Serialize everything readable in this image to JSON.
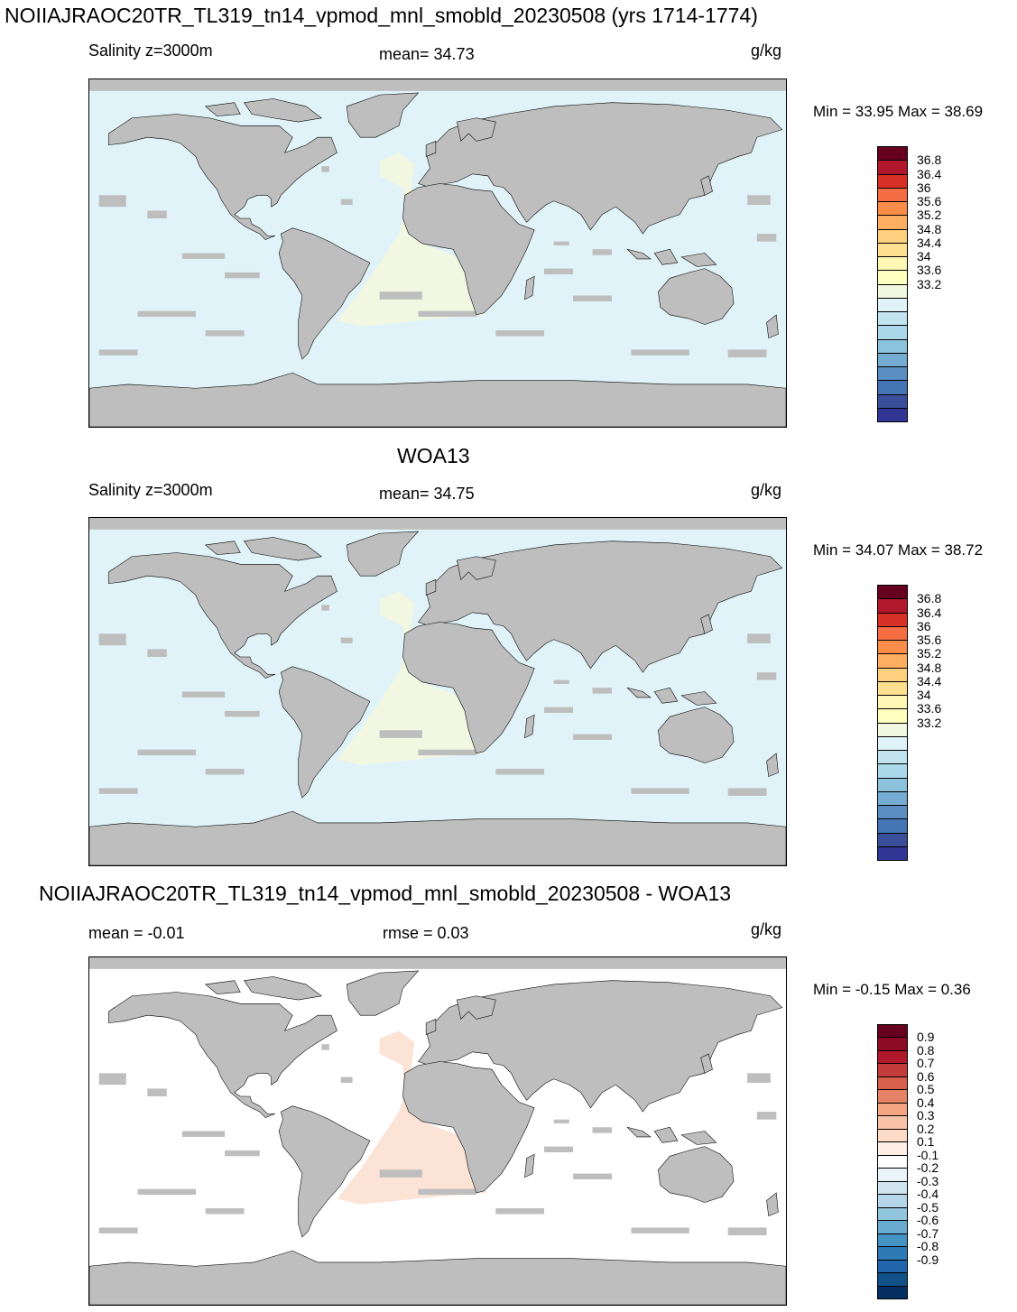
{
  "panels": [
    {
      "id": "model",
      "title": "NOIIAJRAOC20TR_TL319_tn14_vpmod_mnl_smobld_20230508 (yrs 1714-1774)",
      "left_label": "Salinity z=3000m",
      "center_label": "mean=  34.73",
      "unit": "g/kg",
      "minmax": "Min =  33.95 Max =  38.69",
      "ocean_color": "#e0f3f8",
      "highlight_color": "#f2f7e1"
    },
    {
      "id": "woa13",
      "title": "WOA13",
      "left_label": "Salinity z=3000m",
      "center_label": "mean=  34.75",
      "unit": "g/kg",
      "minmax": "Min =  34.07 Max =  38.72",
      "ocean_color": "#e0f3f8",
      "highlight_color": "#f2f7e1"
    },
    {
      "id": "difference",
      "title": "NOIIAJRAOC20TR_TL319_tn14_vpmod_mnl_smobld_20230508 - WOA13",
      "left_label": "mean =  -0.01",
      "center_label": "rmse =   0.03",
      "unit": "g/kg",
      "minmax": "Min =  -0.15 Max =   0.36",
      "ocean_color": "#ffffff",
      "highlight_color": "#fbe3d6"
    }
  ],
  "colorbars": {
    "salinity": {
      "labels": [
        "36.8",
        "36.4",
        "36",
        "35.6",
        "35.2",
        "34.8",
        "34.4",
        "34",
        "33.6",
        "33.2"
      ],
      "colors": [
        "#67001f",
        "#b2182b",
        "#d73027",
        "#f46d43",
        "#fb8d4b",
        "#fdae61",
        "#fdd17f",
        "#fee090",
        "#fef6b5",
        "#ffffbf",
        "#f2f7e1",
        "#e0f3f8",
        "#c1e4ef",
        "#abd9e9",
        "#8dc2dd",
        "#74add1",
        "#5b8fc4",
        "#4575b4",
        "#3a4f9a",
        "#313695"
      ]
    },
    "difference": {
      "labels": [
        "0.9",
        "0.8",
        "0.7",
        "0.6",
        "0.5",
        "0.4",
        "0.3",
        "0.2",
        "0.1",
        "-0.1",
        "-0.2",
        "-0.3",
        "-0.4",
        "-0.5",
        "-0.6",
        "-0.7",
        "-0.8",
        "-0.9"
      ],
      "colors": [
        "#67001f",
        "#8e0b26",
        "#b2182b",
        "#c43c3c",
        "#d6604d",
        "#e58368",
        "#f4a582",
        "#f8c3a8",
        "#fddbc7",
        "#fdeee6",
        "#ffffff",
        "#eaf3f8",
        "#d1e5f0",
        "#b5d6e8",
        "#92c5de",
        "#6aacd0",
        "#4393c3",
        "#2f79b5",
        "#2166ac",
        "#12508a",
        "#053061"
      ]
    }
  },
  "land_color": "#bebebe"
}
